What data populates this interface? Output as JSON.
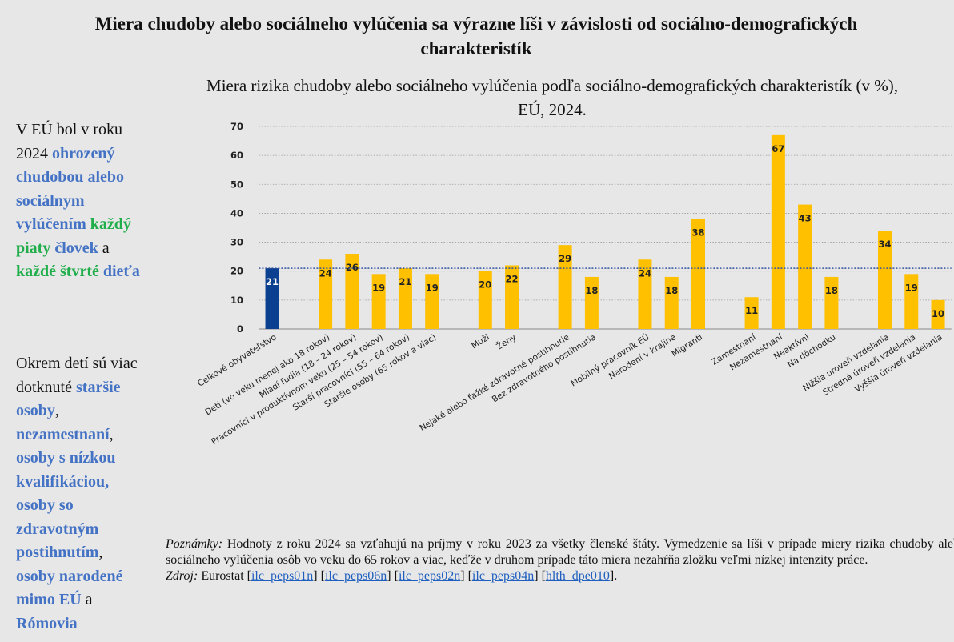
{
  "header": {
    "title": "Miera chudoby alebo sociálneho vylúčenia sa výrazne líši v závislosti od sociálno-demografických charakteristík"
  },
  "sidebar": {
    "p1": [
      "V EÚ bol v roku 2024 ",
      "ohrozený chudobou alebo sociálnym vylúčením",
      " ",
      "každý piaty",
      " ",
      "človek",
      " a ",
      "každé",
      " ",
      "štvrté",
      " ",
      "dieťa"
    ],
    "p2": [
      "Okrem detí sú viac dotknuté ",
      "staršie osoby",
      ", ",
      "nezamestnaní",
      ", ",
      "osoby s nízkou kvalifikáciou,",
      " ",
      "osoby so zdravotným postihnutím",
      ", ",
      "osoby narodené mimo EÚ",
      " a ",
      "Rómovia"
    ]
  },
  "chart_data": {
    "type": "bar",
    "title": "Miera rizika chudoby alebo sociálneho vylúčenia podľa sociálno-demografických charakteristík (v %), EÚ, 2024.",
    "categories": [
      "Celkové obyvateľstvo",
      null,
      "Deti (vo veku menej ako 18 rokov)",
      "Mladí ľudia (18 – 24 rokov)",
      "Pracovníci v produktívnom veku (25 – 54 rokov)",
      "Starší pracovníci (55 – 64 rokov)",
      "Staršie osoby (65 rokov a viac)",
      null,
      "Muži",
      "Ženy",
      null,
      "Nejaké alebo ťažké zdravotné postihnutie",
      "Bez zdravotného postihnutia",
      null,
      "Mobilný pracovník EÚ",
      "Narodení v krajine",
      "Migranti",
      null,
      "Zamestnaní",
      "Nezamestnaní",
      "Neaktívni",
      "Na dôchodku",
      null,
      "Nižšia úroveň vzdelania",
      "Stredná úroveň vzdelania",
      "Vyššia úroveň vzdelania"
    ],
    "values": [
      21,
      null,
      24,
      26,
      19,
      21,
      19,
      null,
      20,
      22,
      null,
      29,
      18,
      null,
      24,
      18,
      38,
      null,
      11,
      67,
      43,
      18,
      null,
      34,
      19,
      10
    ],
    "colors": [
      "#0b3f8f",
      null,
      "#ffc000",
      "#ffc000",
      "#ffc000",
      "#ffc000",
      "#ffc000",
      null,
      "#ffc000",
      "#ffc000",
      null,
      "#ffc000",
      "#ffc000",
      null,
      "#ffc000",
      "#ffc000",
      "#ffc000",
      null,
      "#ffc000",
      "#ffc000",
      "#ffc000",
      "#ffc000",
      null,
      "#ffc000",
      "#ffc000",
      "#ffc000"
    ],
    "ylim": [
      0,
      70
    ],
    "yticks": [
      0,
      10,
      20,
      30,
      40,
      50,
      60,
      70
    ],
    "grid": true,
    "reference_line": {
      "value": 21,
      "color": "#2f4f9f"
    }
  },
  "notes": {
    "label": "Poznámky:",
    "text": " Hodnoty z roku 2024 sa vzťahujú na príjmy v roku 2023 za všetky členské štáty. Vymedzenie sa líši v prípade miery rizika chudoby alebo sociálneho vylúčenia osôb vo veku do 65 rokov a viac, keďže v druhom prípade táto miera nezahŕňa zložku veľmi nízkej intenzity práce.",
    "source_label": "Zdroj:",
    "source_text": " Eurostat ",
    "links": [
      "ilc_peps01n",
      "ilc_peps06n",
      "ilc_peps02n",
      "ilc_peps04n",
      "hlth_dpe010"
    ],
    "end": "."
  }
}
